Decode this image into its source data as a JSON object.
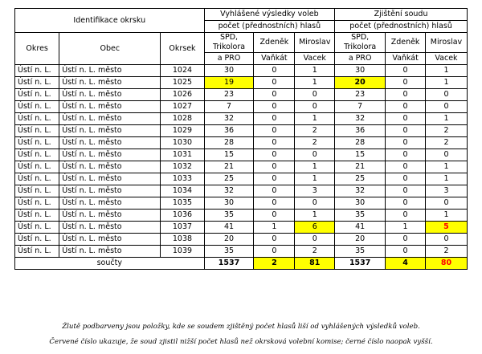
{
  "header": {
    "group_id": "Identifikace okrsku",
    "group_announced": [
      "Vyhlášené výsledky voleb",
      "počet (přednostních) hlasů"
    ],
    "group_court": [
      "Zjištění soudu",
      "počet (přednostních) hlasů"
    ],
    "col_okres": "Okres",
    "col_obec": "Obec",
    "col_okrsek": "Okrsek",
    "col_spd": [
      "SPD,",
      "Trikolora",
      "a PRO"
    ],
    "col_vankat": [
      "Zdeněk",
      "Vaňkát"
    ],
    "col_vacek": [
      "Miroslav",
      "Vacek"
    ]
  },
  "rows": [
    {
      "okres": "Ústí n. L.",
      "obec": "Ústí n. L. město",
      "okrsek": "1024",
      "a_spd": "30",
      "a_zv": "0",
      "a_mv": "1",
      "c_spd": "30",
      "c_zv": "0",
      "c_mv": "1"
    },
    {
      "okres": "Ústí n. L.",
      "obec": "Ústí n. L. město",
      "okrsek": "1025",
      "a_spd": "19",
      "a_zv": "0",
      "a_mv": "1",
      "c_spd": "20",
      "c_zv": "0",
      "c_mv": "1"
    },
    {
      "okres": "Ústí n. L.",
      "obec": "Ústí n. L. město",
      "okrsek": "1026",
      "a_spd": "23",
      "a_zv": "0",
      "a_mv": "0",
      "c_spd": "23",
      "c_zv": "0",
      "c_mv": "0"
    },
    {
      "okres": "Ústí n. L.",
      "obec": "Ústí n. L. město",
      "okrsek": "1027",
      "a_spd": "7",
      "a_zv": "0",
      "a_mv": "0",
      "c_spd": "7",
      "c_zv": "0",
      "c_mv": "0"
    },
    {
      "okres": "Ústí n. L.",
      "obec": "Ústí n. L. město",
      "okrsek": "1028",
      "a_spd": "32",
      "a_zv": "0",
      "a_mv": "1",
      "c_spd": "32",
      "c_zv": "0",
      "c_mv": "1"
    },
    {
      "okres": "Ústí n. L.",
      "obec": "Ústí n. L. město",
      "okrsek": "1029",
      "a_spd": "36",
      "a_zv": "0",
      "a_mv": "2",
      "c_spd": "36",
      "c_zv": "0",
      "c_mv": "2"
    },
    {
      "okres": "Ústí n. L.",
      "obec": "Ústí n. L. město",
      "okrsek": "1030",
      "a_spd": "28",
      "a_zv": "0",
      "a_mv": "2",
      "c_spd": "28",
      "c_zv": "0",
      "c_mv": "2"
    },
    {
      "okres": "Ústí n. L.",
      "obec": "Ústí n. L. město",
      "okrsek": "1031",
      "a_spd": "15",
      "a_zv": "0",
      "a_mv": "0",
      "c_spd": "15",
      "c_zv": "0",
      "c_mv": "0"
    },
    {
      "okres": "Ústí n. L.",
      "obec": "Ústí n. L. město",
      "okrsek": "1032",
      "a_spd": "21",
      "a_zv": "0",
      "a_mv": "1",
      "c_spd": "21",
      "c_zv": "0",
      "c_mv": "1"
    },
    {
      "okres": "Ústí n. L.",
      "obec": "Ústí n. L. město",
      "okrsek": "1033",
      "a_spd": "25",
      "a_zv": "0",
      "a_mv": "1",
      "c_spd": "25",
      "c_zv": "0",
      "c_mv": "1"
    },
    {
      "okres": "Ústí n. L.",
      "obec": "Ústí n. L. město",
      "okrsek": "1034",
      "a_spd": "32",
      "a_zv": "0",
      "a_mv": "3",
      "c_spd": "32",
      "c_zv": "0",
      "c_mv": "3"
    },
    {
      "okres": "Ústí n. L.",
      "obec": "Ústí n. L. město",
      "okrsek": "1035",
      "a_spd": "30",
      "a_zv": "0",
      "a_mv": "0",
      "c_spd": "30",
      "c_zv": "0",
      "c_mv": "0"
    },
    {
      "okres": "Ústí n. L.",
      "obec": "Ústí n. L. město",
      "okrsek": "1036",
      "a_spd": "35",
      "a_zv": "0",
      "a_mv": "1",
      "c_spd": "35",
      "c_zv": "0",
      "c_mv": "1"
    },
    {
      "okres": "Ústí n. L.",
      "obec": "Ústí n. L. město",
      "okrsek": "1037",
      "a_spd": "41",
      "a_zv": "1",
      "a_mv": "6",
      "c_spd": "41",
      "c_zv": "1",
      "c_mv": "5"
    },
    {
      "okres": "Ústí n. L.",
      "obec": "Ústí n. L. město",
      "okrsek": "1038",
      "a_spd": "20",
      "a_zv": "0",
      "a_mv": "0",
      "c_spd": "20",
      "c_zv": "0",
      "c_mv": "0"
    },
    {
      "okres": "Ústí n. L.",
      "obec": "Ústí n. L. město",
      "okrsek": "1039",
      "a_spd": "35",
      "a_zv": "0",
      "a_mv": "2",
      "c_spd": "35",
      "c_zv": "0",
      "c_mv": "2"
    }
  ],
  "totals": {
    "label": "součty",
    "a_spd": "1537",
    "a_zv": "2",
    "a_mv": "81",
    "c_spd": "1537",
    "c_zv": "4",
    "c_mv": "80"
  },
  "highlight_color": "#ffff00",
  "red_color": "#ff0000",
  "notes": {
    "line1": "Žlutě podbarveny jsou položky, kde se soudem zjištěný počet hlasů liší od vyhlášených výsledků voleb.",
    "line2": "Červené číslo ukazuje, že soud zjistil nižší počet hlasů než okrsková volební komise; černé číslo naopak vyšší."
  }
}
